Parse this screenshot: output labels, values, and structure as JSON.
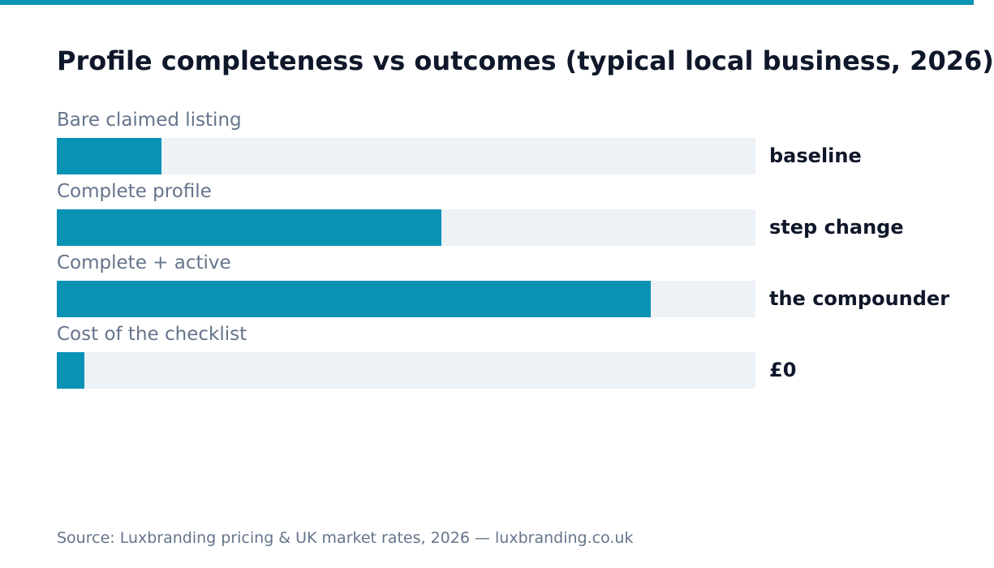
{
  "colors": {
    "accent": "#0892b4",
    "track": "#edf2f7",
    "title": "#0f172a",
    "muted": "#64748b"
  },
  "chart_data": {
    "type": "bar",
    "orientation": "horizontal",
    "title": "Profile completeness vs outcomes (typical local business, 2026)",
    "xlim": [
      0,
      100
    ],
    "grid": false,
    "categories": [
      "Bare claimed listing",
      "Complete profile",
      "Complete + active",
      "Cost of the checklist"
    ],
    "values": [
      15,
      55,
      85,
      4
    ],
    "value_labels": [
      "baseline",
      "step change",
      "the compounder",
      "£0"
    ]
  },
  "source": "Source: Luxbranding pricing & UK market rates, 2026 — luxbranding.co.uk"
}
